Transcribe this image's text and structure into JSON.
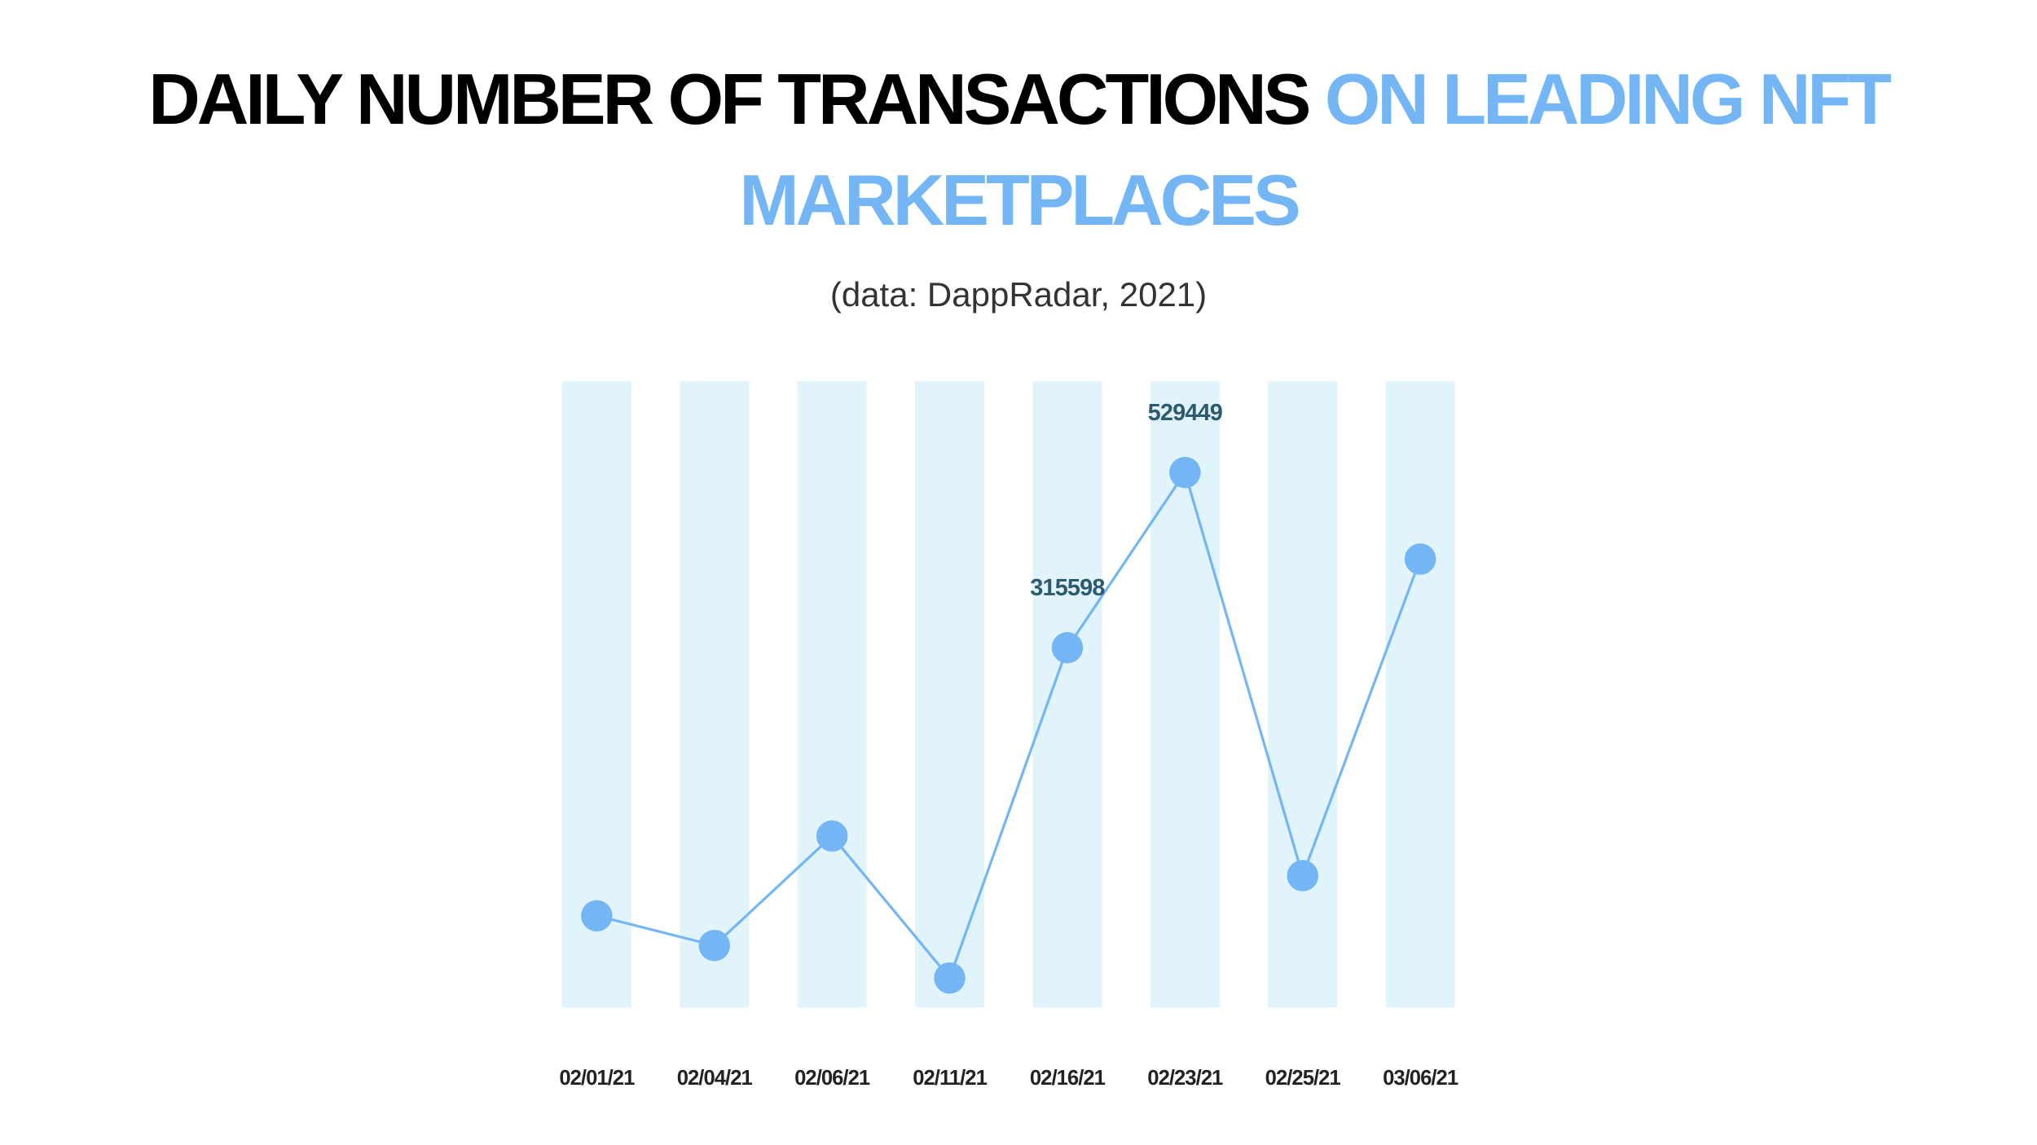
{
  "chart_data": {
    "type": "line",
    "title": [
      "DAILY NUMBER OF TRANSACTIONS",
      "ON LEADING NFT MARKETPLACES"
    ],
    "subtitle": "(data: DappRadar, 2021)",
    "categories": [
      "02/01/21",
      "02/04/21",
      "02/06/21",
      "02/11/21",
      "02/16/21",
      "02/23/21",
      "02/25/21",
      "03/06/21"
    ],
    "values": [
      143000,
      131000,
      181000,
      119000,
      315598,
      529449,
      161000,
      410000
    ],
    "value_labels": [
      null,
      null,
      null,
      null,
      "315598",
      "529449",
      null,
      null
    ],
    "ylim": [
      109000,
      693000
    ],
    "log_scale": true,
    "color": "#74b6f5",
    "band_color": "#e1f3fb",
    "label_color": "#2c5a6e"
  }
}
